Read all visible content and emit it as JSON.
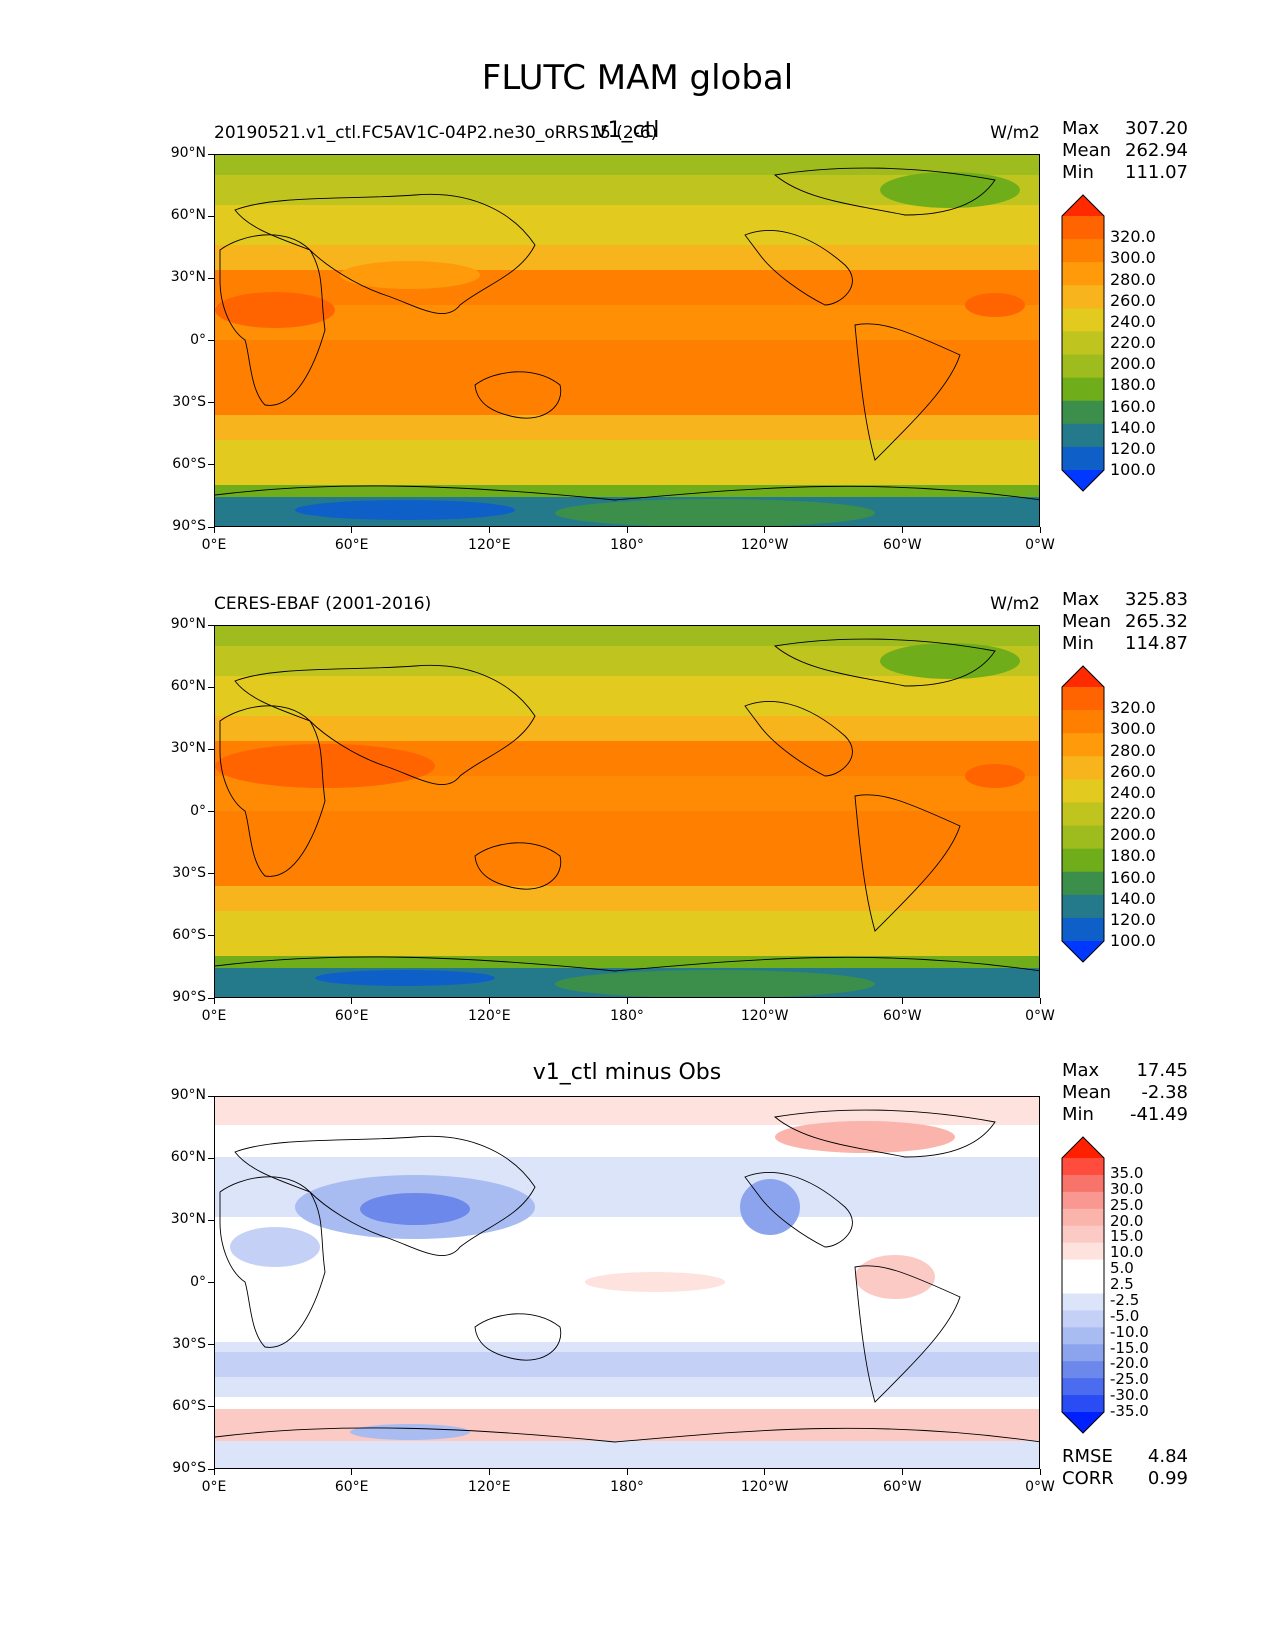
{
  "figure": {
    "title": "FLUTC MAM global"
  },
  "panels": [
    {
      "id": "test",
      "title_left": "20190521.v1_ctl.FC5AV1C-04P2.ne30_oRRS15 (2-6)",
      "title_center": "v1_ctl",
      "units": "W/m2",
      "stats": [
        {
          "label": "Max",
          "value": "307.20"
        },
        {
          "label": "Mean",
          "value": "262.94"
        },
        {
          "label": "Min",
          "value": "111.07"
        }
      ],
      "colorbar_levels": [
        "320.0",
        "300.0",
        "280.0",
        "260.0",
        "240.0",
        "220.0",
        "200.0",
        "180.0",
        "160.0",
        "140.0",
        "120.0",
        "100.0"
      ]
    },
    {
      "id": "ref",
      "title_left": "CERES-EBAF (2001-2016)",
      "title_center": "",
      "units": "W/m2",
      "stats": [
        {
          "label": "Max",
          "value": "325.83"
        },
        {
          "label": "Mean",
          "value": "265.32"
        },
        {
          "label": "Min",
          "value": "114.87"
        }
      ],
      "colorbar_levels": [
        "320.0",
        "300.0",
        "280.0",
        "260.0",
        "240.0",
        "220.0",
        "200.0",
        "180.0",
        "160.0",
        "140.0",
        "120.0",
        "100.0"
      ]
    },
    {
      "id": "diff",
      "title_left": "",
      "title_center": "v1_ctl minus Obs",
      "units": "",
      "stats": [
        {
          "label": "Max",
          "value": "17.45"
        },
        {
          "label": "Mean",
          "value": "-2.38"
        },
        {
          "label": "Min",
          "value": "-41.49"
        }
      ],
      "colorbar_levels": [
        "35.0",
        "30.0",
        "25.0",
        "20.0",
        "15.0",
        "10.0",
        "5.0",
        "2.5",
        "-2.5",
        "-5.0",
        "-10.0",
        "-15.0",
        "-20.0",
        "-25.0",
        "-30.0",
        "-35.0"
      ],
      "footer_stats": [
        {
          "label": "RMSE",
          "value": "4.84"
        },
        {
          "label": "CORR",
          "value": "0.99"
        }
      ]
    }
  ],
  "axes": {
    "lat_ticks": [
      "90°N",
      "60°N",
      "30°N",
      "0°",
      "30°S",
      "60°S",
      "90°S"
    ],
    "lon_ticks": [
      "0°E",
      "60°E",
      "120°E",
      "180°",
      "120°W",
      "60°W",
      "0°W"
    ]
  },
  "colors": {
    "abs_scale": [
      "#ff2a00",
      "#ff6400",
      "#ff8000",
      "#ff9a0a",
      "#f8b41c",
      "#e2ca1f",
      "#bfc41e",
      "#9fbc1e",
      "#6fae1a",
      "#3c8f4a",
      "#247a8a",
      "#0e60c8",
      "#0038ff"
    ],
    "diff_scale": [
      "#ff2000",
      "#ff4c3c",
      "#f8746a",
      "#f89890",
      "#fab4ac",
      "#fccac4",
      "#fde2de",
      "#ffffff",
      "#ffffff",
      "#dce4fa",
      "#c4d0f6",
      "#a8bcf2",
      "#8ca4ee",
      "#6c88ea",
      "#4c6cf0",
      "#2a4cf4",
      "#0020ff"
    ]
  }
}
